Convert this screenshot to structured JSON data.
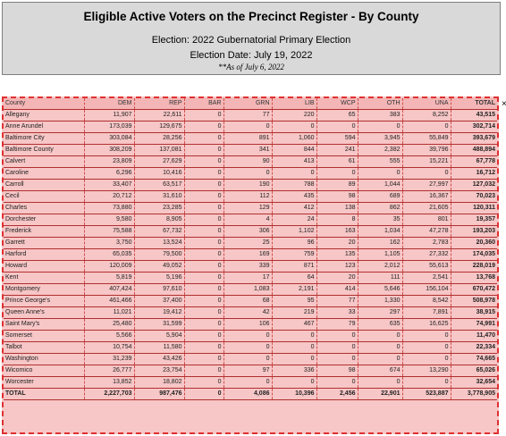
{
  "header": {
    "title": "Eligible Active Voters on the Precinct Register - By County",
    "election": "Election: 2022 Gubernatorial Primary Election",
    "election_date": "Election Date: July 19, 2022",
    "as_of": "**As of July 6, 2022"
  },
  "side_mark": "×",
  "columns": [
    "County",
    "DEM",
    "REP",
    "BAR",
    "GRN",
    "LIB",
    "WCP",
    "OTH",
    "UNA",
    "TOTAL"
  ],
  "rows": [
    [
      "Allegany",
      "11,907",
      "22,611",
      "0",
      "77",
      "220",
      "65",
      "383",
      "8,252",
      "43,515"
    ],
    [
      "Anne Arundel",
      "173,039",
      "129,675",
      "0",
      "0",
      "0",
      "0",
      "0",
      "0",
      "302,714"
    ],
    [
      "Baltimore City",
      "303,084",
      "28,256",
      "0",
      "891",
      "1,060",
      "594",
      "3,945",
      "55,849",
      "393,679"
    ],
    [
      "Baltimore County",
      "308,209",
      "137,081",
      "0",
      "341",
      "844",
      "241",
      "2,382",
      "39,796",
      "488,894"
    ],
    [
      "Calvert",
      "23,809",
      "27,629",
      "0",
      "90",
      "413",
      "61",
      "555",
      "15,221",
      "67,778"
    ],
    [
      "Caroline",
      "6,296",
      "10,416",
      "0",
      "0",
      "0",
      "0",
      "0",
      "0",
      "16,712"
    ],
    [
      "Carroll",
      "33,407",
      "63,517",
      "0",
      "190",
      "788",
      "89",
      "1,044",
      "27,997",
      "127,032"
    ],
    [
      "Cecil",
      "20,712",
      "31,610",
      "0",
      "112",
      "435",
      "98",
      "689",
      "16,367",
      "70,023"
    ],
    [
      "Charles",
      "73,880",
      "23,285",
      "0",
      "129",
      "412",
      "138",
      "862",
      "21,605",
      "120,311"
    ],
    [
      "Dorchester",
      "9,580",
      "8,905",
      "0",
      "4",
      "24",
      "8",
      "35",
      "801",
      "19,357"
    ],
    [
      "Frederick",
      "75,588",
      "67,732",
      "0",
      "306",
      "1,102",
      "163",
      "1,034",
      "47,278",
      "193,203"
    ],
    [
      "Garrett",
      "3,750",
      "13,524",
      "0",
      "25",
      "96",
      "20",
      "162",
      "2,783",
      "20,360"
    ],
    [
      "Harford",
      "65,035",
      "79,500",
      "0",
      "169",
      "759",
      "135",
      "1,105",
      "27,332",
      "174,035"
    ],
    [
      "Howard",
      "120,009",
      "49,052",
      "0",
      "339",
      "871",
      "123",
      "2,012",
      "55,613",
      "228,019"
    ],
    [
      "Kent",
      "5,819",
      "5,196",
      "0",
      "17",
      "64",
      "20",
      "111",
      "2,541",
      "13,768"
    ],
    [
      "Montgomery",
      "407,424",
      "97,610",
      "0",
      "1,083",
      "2,191",
      "414",
      "5,646",
      "156,104",
      "670,472"
    ],
    [
      "Prince George's",
      "461,466",
      "37,400",
      "0",
      "68",
      "95",
      "77",
      "1,330",
      "8,542",
      "508,978"
    ],
    [
      "Queen Anne's",
      "11,021",
      "19,412",
      "0",
      "42",
      "219",
      "33",
      "297",
      "7,891",
      "38,915"
    ],
    [
      "Saint Mary's",
      "25,480",
      "31,599",
      "0",
      "106",
      "467",
      "79",
      "635",
      "16,625",
      "74,991"
    ],
    [
      "Somerset",
      "5,566",
      "5,904",
      "0",
      "0",
      "0",
      "0",
      "0",
      "0",
      "11,470"
    ],
    [
      "Talbot",
      "10,754",
      "11,580",
      "0",
      "0",
      "0",
      "0",
      "0",
      "0",
      "22,334"
    ],
    [
      "Washington",
      "31,239",
      "43,426",
      "0",
      "0",
      "0",
      "0",
      "0",
      "0",
      "74,665"
    ],
    [
      "Wicomico",
      "26,777",
      "23,754",
      "0",
      "97",
      "336",
      "98",
      "674",
      "13,290",
      "65,026"
    ],
    [
      "Worcester",
      "13,852",
      "18,802",
      "0",
      "0",
      "0",
      "0",
      "0",
      "0",
      "32,654"
    ],
    [
      "TOTAL",
      "2,227,703",
      "987,476",
      "0",
      "4,086",
      "10,396",
      "2,456",
      "22,901",
      "523,887",
      "3,778,905"
    ]
  ]
}
